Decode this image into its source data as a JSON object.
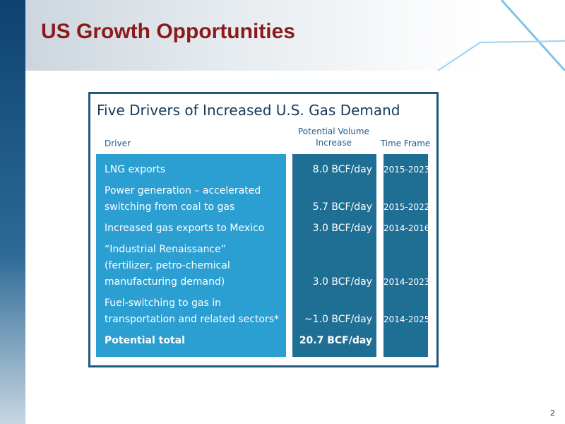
{
  "header": {
    "title": "US Growth Opportunities"
  },
  "table": {
    "title": "Five Drivers of Increased U.S. Gas Demand",
    "columns": [
      "Driver",
      "Potential Volume Increase",
      "Time Frame"
    ],
    "rows": [
      {
        "driver": [
          "LNG exports"
        ],
        "volume": "8.0 BCF/day",
        "time_frame": "2015-2023"
      },
      {
        "driver": [
          "Power generation – accelerated",
          "switching from coal to gas"
        ],
        "volume": "5.7 BCF/day",
        "time_frame": "2015-2022"
      },
      {
        "driver": [
          "Increased gas exports to Mexico"
        ],
        "volume": "3.0 BCF/day",
        "time_frame": "2014-2016"
      },
      {
        "driver": [
          "“Industrial Renaissance”",
          "(fertilizer, petro-chemical",
          "manufacturing demand)"
        ],
        "volume": "3.0 BCF/day",
        "time_frame": "2014-2023"
      },
      {
        "driver": [
          "Fuel-switching to gas in",
          "transportation and related sectors*"
        ],
        "volume": "~1.0 BCF/day",
        "time_frame": "2014-2025"
      }
    ],
    "total": {
      "driver": "Potential total",
      "volume": "20.7 BCF/day"
    }
  },
  "footer": {
    "page_number": "2"
  }
}
